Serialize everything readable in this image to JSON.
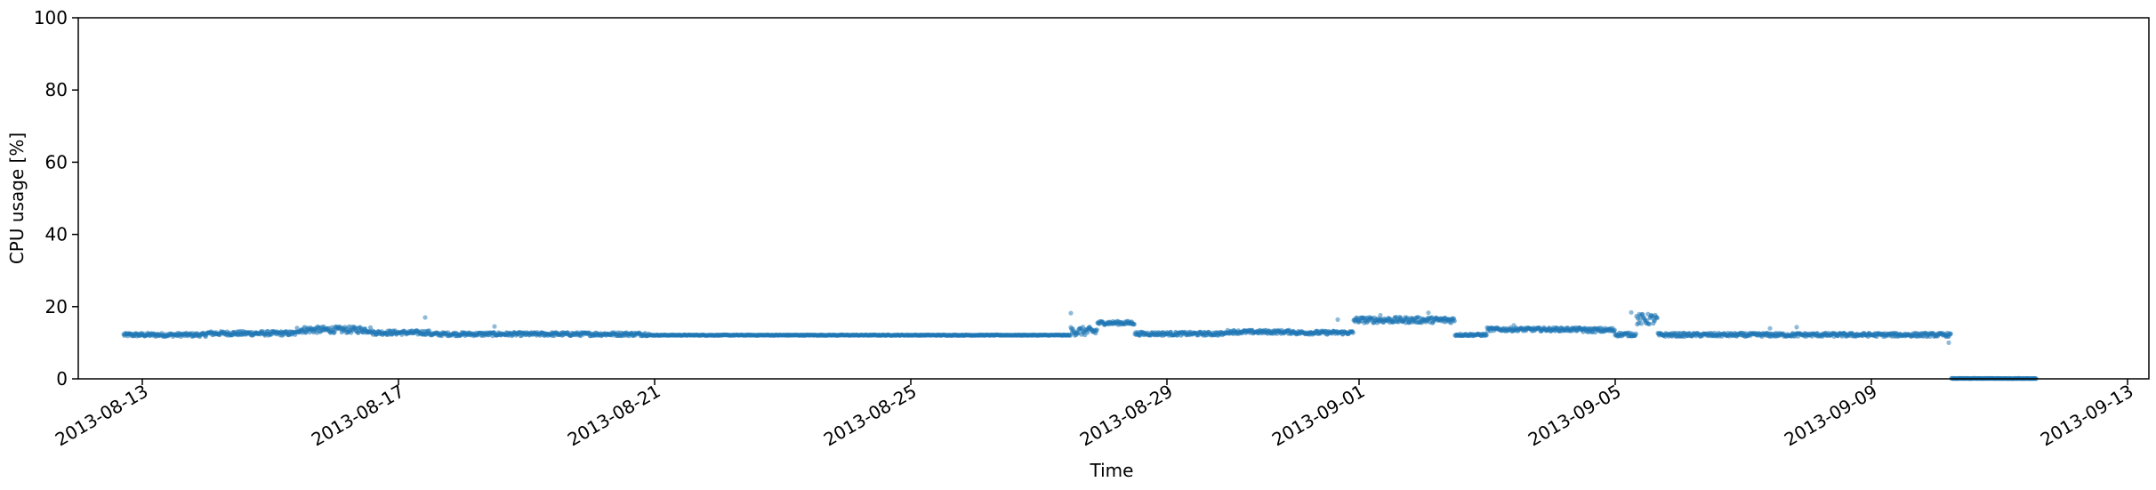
{
  "chart_data": {
    "type": "scatter",
    "title": "",
    "xlabel": "Time",
    "ylabel": "CPU usage [%]",
    "ylim": [
      0,
      100
    ],
    "xlim": [
      "2013-08-12T00:00",
      "2013-09-13T08:00"
    ],
    "grid": false,
    "marker_color": "#1f77b4",
    "y_ticks": [
      0,
      20,
      40,
      60,
      80,
      100
    ],
    "x_ticks": [
      "2013-08-13",
      "2013-08-17",
      "2013-08-21",
      "2013-08-25",
      "2013-08-29",
      "2013-09-01",
      "2013-09-05",
      "2013-09-09",
      "2013-09-13"
    ],
    "segments": [
      {
        "start": "2013-08-12T17:00",
        "end": "2013-08-14T00:00",
        "value": 12.2,
        "noise": 0.5
      },
      {
        "start": "2013-08-14T00:00",
        "end": "2013-08-15T10:00",
        "value": 12.6,
        "noise": 0.6
      },
      {
        "start": "2013-08-15T10:00",
        "end": "2013-08-16T14:00",
        "value": 13.6,
        "noise": 0.9
      },
      {
        "start": "2013-08-16T14:00",
        "end": "2013-08-17T12:00",
        "value": 12.8,
        "noise": 0.6
      },
      {
        "start": "2013-08-17T12:00",
        "end": "2013-08-20T22:00",
        "value": 12.4,
        "noise": 0.5
      },
      {
        "start": "2013-08-20T22:00",
        "end": "2013-08-27T12:00",
        "value": 12.1,
        "noise": 0.1
      },
      {
        "start": "2013-08-27T12:00",
        "end": "2013-08-27T22:00",
        "value": 13.2,
        "noise": 1.2
      },
      {
        "start": "2013-08-27T22:00",
        "end": "2013-08-28T12:00",
        "value": 15.5,
        "noise": 0.5
      },
      {
        "start": "2013-08-28T12:00",
        "end": "2013-08-29T22:00",
        "value": 12.5,
        "noise": 0.5
      },
      {
        "start": "2013-08-29T22:00",
        "end": "2013-08-31T00:00",
        "value": 13.0,
        "noise": 0.5
      },
      {
        "start": "2013-08-31T00:00",
        "end": "2013-08-31T22:00",
        "value": 12.8,
        "noise": 0.5
      },
      {
        "start": "2013-08-31T22:00",
        "end": "2013-09-02T12:00",
        "value": 16.3,
        "noise": 0.8
      },
      {
        "start": "2013-09-02T12:00",
        "end": "2013-09-03T00:00",
        "value": 12.2,
        "noise": 0.3
      },
      {
        "start": "2013-09-03T00:00",
        "end": "2013-09-04T12:00",
        "value": 13.7,
        "noise": 0.5
      },
      {
        "start": "2013-09-04T12:00",
        "end": "2013-09-05T00:00",
        "value": 13.5,
        "noise": 0.6
      },
      {
        "start": "2013-09-05T00:00",
        "end": "2013-09-05T08:00",
        "value": 12.3,
        "noise": 0.5
      },
      {
        "start": "2013-09-05T08:00",
        "end": "2013-09-05T16:00",
        "value": 16.5,
        "noise": 1.5
      },
      {
        "start": "2013-09-05T16:00",
        "end": "2013-09-10T06:00",
        "value": 12.2,
        "noise": 0.5
      },
      {
        "start": "2013-09-10T06:00",
        "end": "2013-09-11T14:00",
        "value": 0.1,
        "noise": 0.05
      }
    ],
    "outliers": [
      {
        "x": "2013-08-17T10:00",
        "y": 17.0
      },
      {
        "x": "2013-08-18T12:00",
        "y": 14.5
      },
      {
        "x": "2013-08-27T12:00",
        "y": 18.2
      },
      {
        "x": "2013-08-31T16:00",
        "y": 16.4
      },
      {
        "x": "2013-09-01T08:00",
        "y": 17.6
      },
      {
        "x": "2013-09-02T02:00",
        "y": 18.3
      },
      {
        "x": "2013-09-03T10:00",
        "y": 14.8
      },
      {
        "x": "2013-09-07T10:00",
        "y": 14.0
      },
      {
        "x": "2013-09-07T20:00",
        "y": 14.3
      },
      {
        "x": "2013-09-10T05:00",
        "y": 10.0
      },
      {
        "x": "2013-09-05T06:00",
        "y": 18.4
      }
    ]
  }
}
